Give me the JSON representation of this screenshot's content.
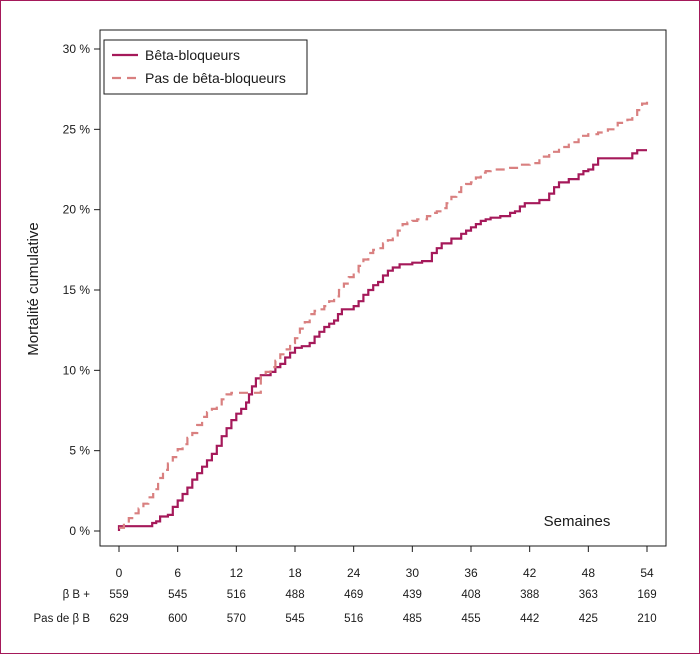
{
  "chart_data": {
    "type": "line",
    "ylabel": "Mortalité cumulative",
    "annotation": "Semaines",
    "xlim": [
      0,
      54
    ],
    "ylim": [
      0,
      30
    ],
    "x_ticks": [
      0,
      6,
      12,
      18,
      24,
      30,
      36,
      42,
      48,
      54
    ],
    "y_ticks": [
      0,
      5,
      10,
      15,
      20,
      25,
      30
    ],
    "y_tick_labels": [
      "0 %",
      "5 %",
      "10 %",
      "15 %",
      "20 %",
      "25 %",
      "30 %"
    ],
    "x_tick_labels": [
      "0",
      "6",
      "12",
      "18",
      "24",
      "30",
      "36",
      "42",
      "48",
      "54"
    ],
    "legend_position": "top-left",
    "colors": {
      "beta": "#a5195a",
      "no_beta": "#d98080",
      "frame": "#a5195a"
    },
    "series": [
      {
        "name": "Bêta-bloqueurs",
        "style": "solid",
        "points": [
          [
            0,
            0
          ],
          [
            0,
            0.3
          ],
          [
            3,
            0.3
          ],
          [
            3.4,
            0.5
          ],
          [
            3.8,
            0.6
          ],
          [
            4.2,
            0.9
          ],
          [
            5,
            1.0
          ],
          [
            5.5,
            1.5
          ],
          [
            6,
            1.9
          ],
          [
            6.5,
            2.3
          ],
          [
            7,
            2.7
          ],
          [
            7.5,
            3.2
          ],
          [
            8,
            3.6
          ],
          [
            8.5,
            4.0
          ],
          [
            9,
            4.4
          ],
          [
            9.5,
            4.8
          ],
          [
            10,
            5.3
          ],
          [
            10.5,
            5.9
          ],
          [
            11,
            6.4
          ],
          [
            11.5,
            6.9
          ],
          [
            12,
            7.3
          ],
          [
            12.5,
            7.6
          ],
          [
            13,
            8.0
          ],
          [
            13.3,
            8.5
          ],
          [
            13.6,
            9.0
          ],
          [
            14,
            9.5
          ],
          [
            14.5,
            9.7
          ],
          [
            15,
            9.7
          ],
          [
            15.5,
            9.9
          ],
          [
            16,
            10.2
          ],
          [
            16.5,
            10.4
          ],
          [
            17,
            10.8
          ],
          [
            17.5,
            11.1
          ],
          [
            18,
            11.4
          ],
          [
            18.7,
            11.5
          ],
          [
            19.5,
            11.7
          ],
          [
            20,
            12.1
          ],
          [
            20.5,
            12.4
          ],
          [
            21,
            12.7
          ],
          [
            21.5,
            12.9
          ],
          [
            22,
            13.1
          ],
          [
            22.4,
            13.5
          ],
          [
            22.8,
            13.8
          ],
          [
            23.5,
            13.8
          ],
          [
            24,
            14.0
          ],
          [
            24.5,
            14.3
          ],
          [
            25,
            14.7
          ],
          [
            25.5,
            15.0
          ],
          [
            26,
            15.3
          ],
          [
            26.5,
            15.5
          ],
          [
            27,
            15.9
          ],
          [
            27.5,
            16.2
          ],
          [
            28,
            16.4
          ],
          [
            28.7,
            16.6
          ],
          [
            29.5,
            16.6
          ],
          [
            30,
            16.7
          ],
          [
            31,
            16.8
          ],
          [
            32,
            17.3
          ],
          [
            32.5,
            17.6
          ],
          [
            33,
            17.9
          ],
          [
            34,
            18.2
          ],
          [
            35,
            18.5
          ],
          [
            35.5,
            18.7
          ],
          [
            36,
            18.9
          ],
          [
            36.5,
            19.1
          ],
          [
            37,
            19.3
          ],
          [
            37.5,
            19.4
          ],
          [
            38,
            19.5
          ],
          [
            39,
            19.6
          ],
          [
            40,
            19.8
          ],
          [
            40.5,
            19.9
          ],
          [
            41,
            20.2
          ],
          [
            41.5,
            20.4
          ],
          [
            42,
            20.4
          ],
          [
            43,
            20.6
          ],
          [
            44,
            21.0
          ],
          [
            44.5,
            21.4
          ],
          [
            45,
            21.7
          ],
          [
            46,
            21.9
          ],
          [
            47,
            22.2
          ],
          [
            47.5,
            22.4
          ],
          [
            48,
            22.5
          ],
          [
            48.5,
            22.8
          ],
          [
            49,
            23.2
          ],
          [
            52,
            23.2
          ],
          [
            52.5,
            23.5
          ],
          [
            53,
            23.7
          ],
          [
            54,
            23.7
          ]
        ]
      },
      {
        "name": "Pas de bêta-bloqueurs",
        "style": "dashed",
        "points": [
          [
            0,
            0.2
          ],
          [
            0.5,
            0.5
          ],
          [
            1,
            0.8
          ],
          [
            1.5,
            1.1
          ],
          [
            2,
            1.4
          ],
          [
            2.5,
            1.7
          ],
          [
            3,
            2.1
          ],
          [
            3.5,
            2.6
          ],
          [
            4,
            3.3
          ],
          [
            4.5,
            3.8
          ],
          [
            5,
            4.2
          ],
          [
            5.5,
            4.6
          ],
          [
            6,
            5.1
          ],
          [
            6.5,
            5.4
          ],
          [
            7,
            5.8
          ],
          [
            7.5,
            6.1
          ],
          [
            8,
            6.6
          ],
          [
            8.5,
            7.1
          ],
          [
            9,
            7.4
          ],
          [
            9.5,
            7.6
          ],
          [
            10,
            7.8
          ],
          [
            10.5,
            8.2
          ],
          [
            11,
            8.5
          ],
          [
            11.5,
            8.6
          ],
          [
            12,
            8.6
          ],
          [
            13,
            8.6
          ],
          [
            14,
            8.6
          ],
          [
            14.5,
            9.6
          ],
          [
            15,
            9.9
          ],
          [
            15.5,
            10.2
          ],
          [
            16,
            10.6
          ],
          [
            16.5,
            11.0
          ],
          [
            17,
            11.3
          ],
          [
            17.5,
            11.7
          ],
          [
            18,
            12.0
          ],
          [
            18.5,
            12.6
          ],
          [
            19,
            13.0
          ],
          [
            19.5,
            13.5
          ],
          [
            20,
            13.7
          ],
          [
            20.5,
            13.8
          ],
          [
            21,
            14.0
          ],
          [
            21.5,
            14.3
          ],
          [
            22,
            14.6
          ],
          [
            22.5,
            15.0
          ],
          [
            23,
            15.4
          ],
          [
            23.5,
            15.8
          ],
          [
            24,
            16.1
          ],
          [
            24.5,
            16.5
          ],
          [
            25,
            16.9
          ],
          [
            25.5,
            17.3
          ],
          [
            26,
            17.5
          ],
          [
            26.5,
            17.6
          ],
          [
            27,
            17.9
          ],
          [
            27.5,
            18.1
          ],
          [
            28,
            18.2
          ],
          [
            28.5,
            18.7
          ],
          [
            29,
            19.1
          ],
          [
            29.5,
            19.2
          ],
          [
            30,
            19.3
          ],
          [
            30.5,
            19.4
          ],
          [
            31,
            19.4
          ],
          [
            31.5,
            19.6
          ],
          [
            32,
            19.8
          ],
          [
            32.5,
            19.9
          ],
          [
            33,
            20.1
          ],
          [
            33.5,
            20.4
          ],
          [
            34,
            20.8
          ],
          [
            34.5,
            21.1
          ],
          [
            35,
            21.4
          ],
          [
            35.5,
            21.6
          ],
          [
            36,
            21.7
          ],
          [
            36.5,
            22.0
          ],
          [
            37,
            22.3
          ],
          [
            37.5,
            22.4
          ],
          [
            38,
            22.5
          ],
          [
            39,
            22.5
          ],
          [
            40,
            22.6
          ],
          [
            41,
            22.8
          ],
          [
            42,
            22.9
          ],
          [
            43,
            23.3
          ],
          [
            44,
            23.6
          ],
          [
            45,
            23.9
          ],
          [
            46,
            24.2
          ],
          [
            47,
            24.6
          ],
          [
            48,
            24.7
          ],
          [
            49,
            24.8
          ],
          [
            50,
            25.0
          ],
          [
            51,
            25.4
          ],
          [
            52,
            25.6
          ],
          [
            52.5,
            25.9
          ],
          [
            53,
            26.2
          ],
          [
            53.5,
            26.6
          ],
          [
            54,
            27.0
          ]
        ]
      }
    ],
    "risk_table": {
      "rows": [
        {
          "label": "β B +",
          "values": [
            "559",
            "545",
            "516",
            "488",
            "469",
            "439",
            "408",
            "388",
            "363",
            "169"
          ]
        },
        {
          "label": "Pas de β B",
          "values": [
            "629",
            "600",
            "570",
            "545",
            "516",
            "485",
            "455",
            "442",
            "425",
            "210"
          ]
        }
      ]
    }
  }
}
